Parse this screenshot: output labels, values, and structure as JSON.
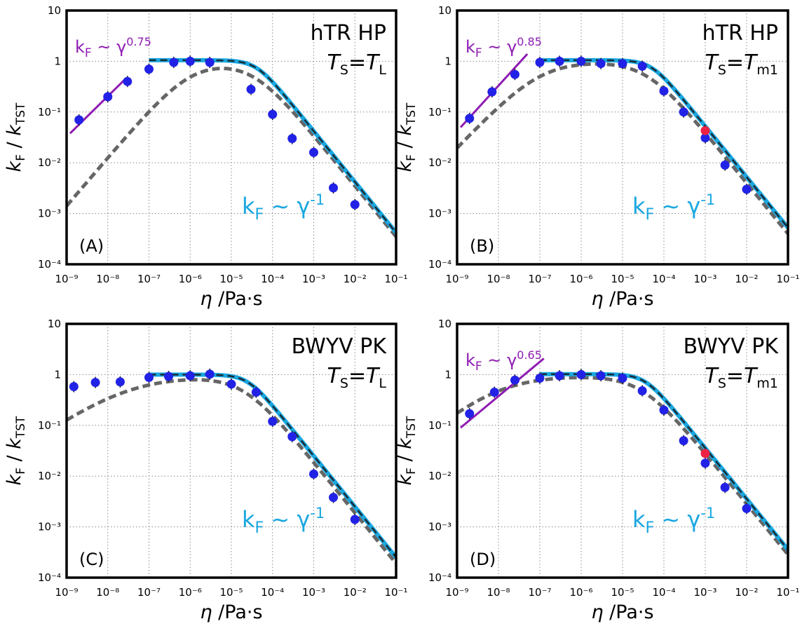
{
  "chart_data": [
    {
      "type": "scatter",
      "panel": "(A)",
      "label_line1": "hTR HP",
      "label_T": "T",
      "label_T_sub": "S",
      "label_eq": "=",
      "label_T2": "T",
      "label_T2_sub": "L",
      "xlabel_sym": "η",
      "xlabel_unit": " /Pa·s",
      "ylabel_k": "k",
      "ylabel_k_sub": "F",
      "ylabel_sep": " / ",
      "ylabel_k2": "k",
      "ylabel_k2_sub": "TST",
      "x_scale": "log",
      "y_scale": "log",
      "xlim": [
        1e-09,
        0.1
      ],
      "ylim": [
        0.0001,
        10
      ],
      "grid": true,
      "x_ticks": [
        "10⁻⁹",
        "10⁻⁸",
        "10⁻⁷",
        "10⁻⁶",
        "10⁻⁵",
        "10⁻⁴",
        "10⁻³",
        "10⁻²",
        "10⁻¹"
      ],
      "y_ticks": [
        "10⁻⁴",
        "10⁻³",
        "10⁻²",
        "10⁻¹",
        "1",
        "10"
      ],
      "power_law_low": {
        "k": "k",
        "k_sub": "F",
        "rel": " ~ ",
        "g": "γ",
        "exp": "0.75",
        "exponent": 0.75,
        "x_range": [
          1e-09,
          1e-08
        ],
        "y_start": 0.038,
        "color": "#8e1cb2"
      },
      "power_law_high": {
        "k": "k",
        "k_sub": "F",
        "rel": " ~ ",
        "g": "γ",
        "exp": "-1",
        "color": "#1aa7e0"
      },
      "points": [
        [
          2e-09,
          0.07
        ],
        [
          1e-08,
          0.2
        ],
        [
          3e-08,
          0.4
        ],
        [
          1e-07,
          0.7
        ],
        [
          4e-07,
          0.95
        ],
        [
          1e-06,
          1.0
        ],
        [
          3e-06,
          0.95
        ],
        [
          3e-05,
          0.28
        ],
        [
          0.0001,
          0.09
        ],
        [
          0.0003,
          0.03
        ],
        [
          0.001,
          0.016
        ],
        [
          0.003,
          0.0032
        ],
        [
          0.01,
          0.0015
        ]
      ],
      "red_points": [],
      "cyan_curve": {
        "x_start": 1e-07,
        "plateau": 1.05,
        "knee": 4e-05,
        "steepness": 1.1
      },
      "dashed_curve": {
        "rise_to": 1.0,
        "rise_exp": 0.95,
        "knee": 3.5e-05,
        "peak_scale": 1e-06
      },
      "colors": {
        "points": "#2222e6",
        "red": "#ee2244",
        "cyan": "#1aa7e0",
        "dash": "#666666",
        "purple": "#8e1cb2"
      }
    },
    {
      "type": "scatter",
      "panel": "(B)",
      "label_line1": "hTR HP",
      "label_T": "T",
      "label_T_sub": "S",
      "label_eq": "=",
      "label_T2": "T",
      "label_T2_sub": "m1",
      "xlabel_sym": "η",
      "xlabel_unit": " /Pa·s",
      "ylabel_k": "k",
      "ylabel_k_sub": "F",
      "ylabel_sep": " / ",
      "ylabel_k2": "k",
      "ylabel_k2_sub": "TST",
      "x_scale": "log",
      "y_scale": "log",
      "xlim": [
        1e-09,
        0.1
      ],
      "ylim": [
        0.0001,
        10
      ],
      "grid": true,
      "x_ticks": [
        "10⁻⁹",
        "10⁻⁸",
        "10⁻⁷",
        "10⁻⁶",
        "10⁻⁵",
        "10⁻⁴",
        "10⁻³",
        "10⁻²",
        "10⁻¹"
      ],
      "y_ticks": [
        "10⁻⁴",
        "10⁻³",
        "10⁻²",
        "10⁻¹",
        "1",
        "10"
      ],
      "power_law_low": {
        "k": "k",
        "k_sub": "F",
        "rel": " ~ ",
        "g": "γ",
        "exp": "0.85",
        "exponent": 0.85,
        "x_range": [
          1e-09,
          2e-08
        ],
        "y_start": 0.05,
        "color": "#8e1cb2"
      },
      "power_law_high": {
        "k": "k",
        "k_sub": "F",
        "rel": " ~ ",
        "g": "γ",
        "exp": "-1",
        "color": "#1aa7e0"
      },
      "points": [
        [
          2e-09,
          0.075
        ],
        [
          7e-09,
          0.25
        ],
        [
          2.5e-08,
          0.55
        ],
        [
          1e-07,
          0.95
        ],
        [
          3e-07,
          1.0
        ],
        [
          1e-06,
          1.0
        ],
        [
          3e-06,
          0.9
        ],
        [
          1e-05,
          0.9
        ],
        [
          3e-05,
          0.8
        ],
        [
          0.0001,
          0.26
        ],
        [
          0.0003,
          0.1
        ],
        [
          0.001,
          0.031
        ],
        [
          0.003,
          0.009
        ],
        [
          0.01,
          0.003
        ]
      ],
      "red_points": [
        [
          0.001,
          0.043
        ]
      ],
      "cyan_curve": {
        "x_start": 1e-07,
        "plateau": 1.05,
        "knee": 5e-05,
        "steepness": 1.1
      },
      "dashed_curve": {
        "rise_to": 1.0,
        "rise_exp": 0.85,
        "knee": 4e-05,
        "peak_scale": 1e-07
      },
      "colors": {
        "points": "#2222e6",
        "red": "#ee2244",
        "cyan": "#1aa7e0",
        "dash": "#666666",
        "purple": "#8e1cb2"
      }
    },
    {
      "type": "scatter",
      "panel": "(C)",
      "label_line1": "BWYV PK",
      "label_T": "T",
      "label_T_sub": "S",
      "label_eq": "=",
      "label_T2": "T",
      "label_T2_sub": "L",
      "xlabel_sym": "η",
      "xlabel_unit": " /Pa·s",
      "ylabel_k": "k",
      "ylabel_k_sub": "F",
      "ylabel_sep": " / ",
      "ylabel_k2": "k",
      "ylabel_k2_sub": "TST",
      "x_scale": "log",
      "y_scale": "log",
      "xlim": [
        1e-09,
        0.1
      ],
      "ylim": [
        0.0001,
        10
      ],
      "grid": true,
      "x_ticks": [
        "10⁻⁹",
        "10⁻⁸",
        "10⁻⁷",
        "10⁻⁶",
        "10⁻⁵",
        "10⁻⁴",
        "10⁻³",
        "10⁻²",
        "10⁻¹"
      ],
      "y_ticks": [
        "10⁻⁴",
        "10⁻³",
        "10⁻²",
        "10⁻¹",
        "1",
        "10"
      ],
      "power_law_low": null,
      "power_law_high": {
        "k": "k",
        "k_sub": "F",
        "rel": " ~ ",
        "g": "γ",
        "exp": "-1",
        "color": "#1aa7e0"
      },
      "points": [
        [
          1.5e-09,
          0.58
        ],
        [
          5e-09,
          0.7
        ],
        [
          2e-08,
          0.72
        ],
        [
          1e-07,
          0.88
        ],
        [
          3e-07,
          0.92
        ],
        [
          1e-06,
          0.95
        ],
        [
          3e-06,
          1.02
        ],
        [
          1e-05,
          0.65
        ],
        [
          4e-05,
          0.45
        ],
        [
          0.0001,
          0.12
        ],
        [
          0.0003,
          0.06
        ],
        [
          0.001,
          0.011
        ],
        [
          0.003,
          0.0038
        ],
        [
          0.01,
          0.0014
        ]
      ],
      "red_points": [],
      "cyan_curve": {
        "x_start": 1e-07,
        "plateau": 1.0,
        "knee": 2.5e-05,
        "steepness": 1.1
      },
      "dashed_curve": {
        "rise_to": 0.95,
        "rise_exp": 0.55,
        "knee": 2e-05,
        "peak_scale": 3e-08
      },
      "colors": {
        "points": "#2222e6",
        "red": "#ee2244",
        "cyan": "#1aa7e0",
        "dash": "#666666",
        "purple": "#8e1cb2"
      }
    },
    {
      "type": "scatter",
      "panel": "(D)",
      "label_line1": "BWYV PK",
      "label_T": "T",
      "label_T_sub": "S",
      "label_eq": "=",
      "label_T2": "T",
      "label_T2_sub": "m1",
      "xlabel_sym": "η",
      "xlabel_unit": " /Pa·s",
      "ylabel_k": "k",
      "ylabel_k_sub": "F",
      "ylabel_sep": " / ",
      "ylabel_k2": "k",
      "ylabel_k2_sub": "TST",
      "x_scale": "log",
      "y_scale": "log",
      "xlim": [
        1e-09,
        0.1
      ],
      "ylim": [
        0.0001,
        10
      ],
      "grid": true,
      "x_ticks": [
        "10⁻⁹",
        "10⁻⁸",
        "10⁻⁷",
        "10⁻⁶",
        "10⁻⁵",
        "10⁻⁴",
        "10⁻³",
        "10⁻²",
        "10⁻¹"
      ],
      "y_ticks": [
        "10⁻⁴",
        "10⁻³",
        "10⁻²",
        "10⁻¹",
        "1",
        "10"
      ],
      "power_law_low": {
        "k": "k",
        "k_sub": "F",
        "rel": " ~ ",
        "g": "γ",
        "exp": "0.65",
        "exponent": 0.65,
        "x_range": [
          1e-09,
          5e-08
        ],
        "y_start": 0.09,
        "color": "#8e1cb2"
      },
      "power_law_high": {
        "k": "k",
        "k_sub": "F",
        "rel": " ~ ",
        "g": "γ",
        "exp": "-1",
        "color": "#1aa7e0"
      },
      "points": [
        [
          2e-09,
          0.17
        ],
        [
          8e-09,
          0.45
        ],
        [
          2.5e-08,
          0.78
        ],
        [
          1e-07,
          0.85
        ],
        [
          3e-07,
          0.95
        ],
        [
          1e-06,
          1.0
        ],
        [
          3e-06,
          0.95
        ],
        [
          1e-05,
          0.85
        ],
        [
          3e-05,
          0.48
        ],
        [
          0.0001,
          0.2
        ],
        [
          0.0003,
          0.05
        ],
        [
          0.001,
          0.018
        ],
        [
          0.003,
          0.006
        ],
        [
          0.01,
          0.0023
        ]
      ],
      "red_points": [
        [
          0.001,
          0.028
        ]
      ],
      "cyan_curve": {
        "x_start": 1e-07,
        "plateau": 1.02,
        "knee": 3.5e-05,
        "steepness": 1.1
      },
      "dashed_curve": {
        "rise_to": 0.95,
        "rise_exp": 0.65,
        "knee": 3e-05,
        "peak_scale": 1e-08
      },
      "colors": {
        "points": "#2222e6",
        "red": "#ee2244",
        "cyan": "#1aa7e0",
        "dash": "#666666",
        "purple": "#8e1cb2"
      }
    }
  ]
}
